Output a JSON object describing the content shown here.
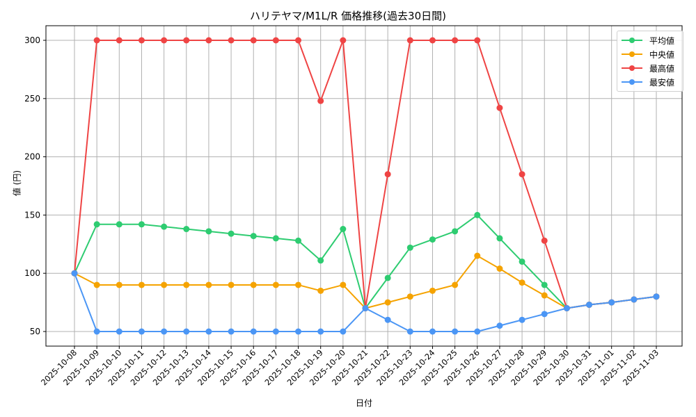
{
  "chart_data": {
    "type": "line",
    "title": "ハリテヤマ/M1L/R 価格推移(過去30日間)",
    "xlabel": "日付",
    "ylabel": "値 (円)",
    "ylim": [
      37,
      312
    ],
    "yticks": [
      50,
      100,
      150,
      200,
      250,
      300
    ],
    "grid": true,
    "legend_position": "upper right",
    "categories": [
      "2025-10-08",
      "2025-10-09",
      "2025-10-10",
      "2025-10-11",
      "2025-10-12",
      "2025-10-13",
      "2025-10-14",
      "2025-10-15",
      "2025-10-16",
      "2025-10-17",
      "2025-10-18",
      "2025-10-19",
      "2025-10-20",
      "2025-10-21",
      "2025-10-22",
      "2025-10-23",
      "2025-10-24",
      "2025-10-25",
      "2025-10-26",
      "2025-10-27",
      "2025-10-28",
      "2025-10-29",
      "2025-10-30",
      "2025-10-31",
      "2025-11-01",
      "2025-11-02",
      "2025-11-03"
    ],
    "series": [
      {
        "name": "平均値",
        "color": "#2ecc71",
        "values": [
          100,
          142,
          142,
          142,
          140,
          138,
          136,
          134,
          132,
          130,
          128,
          111,
          138,
          70,
          96,
          122,
          129,
          136,
          150,
          130,
          110,
          90,
          70,
          73,
          75,
          77.5,
          80
        ]
      },
      {
        "name": "中央値",
        "color": "#f5a300",
        "values": [
          100,
          90,
          90,
          90,
          90,
          90,
          90,
          90,
          90,
          90,
          90,
          85,
          90,
          70,
          75,
          80,
          85,
          90,
          115,
          104,
          92,
          81,
          70,
          73,
          75,
          77.5,
          80
        ]
      },
      {
        "name": "最高値",
        "color": "#ef4444",
        "values": [
          100,
          300,
          300,
          300,
          300,
          300,
          300,
          300,
          300,
          300,
          300,
          248,
          300,
          70,
          185,
          300,
          300,
          300,
          300,
          242,
          185,
          128,
          70,
          73,
          75,
          77.5,
          80
        ]
      },
      {
        "name": "最安値",
        "color": "#4b96f5",
        "values": [
          100,
          50,
          50,
          50,
          50,
          50,
          50,
          50,
          50,
          50,
          50,
          50,
          50,
          70,
          60,
          50,
          50,
          50,
          50,
          55,
          60,
          65,
          70,
          73,
          75,
          77.5,
          80
        ]
      }
    ]
  }
}
